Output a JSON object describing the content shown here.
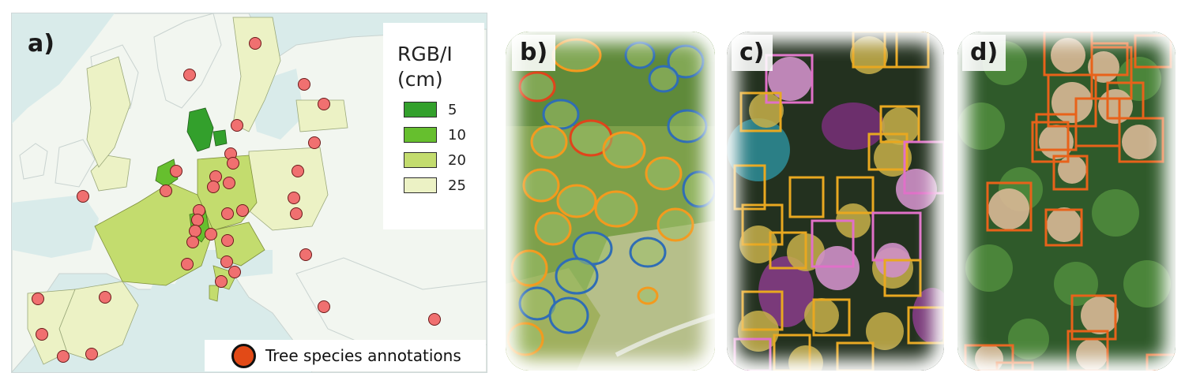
{
  "panels": {
    "a": "a)",
    "b": "b)",
    "c": "c)",
    "d": "d)"
  },
  "legend": {
    "title_line1": "RGB/I",
    "title_line2": "(cm)",
    "items": [
      {
        "value": "5",
        "color": "#33a02c"
      },
      {
        "value": "10",
        "color": "#66bf2e"
      },
      {
        "value": "20",
        "color": "#c3dc6e"
      },
      {
        "value": "25",
        "color": "#ecf2c5"
      }
    ]
  },
  "annotation_legend": {
    "label": "Tree species annotations",
    "marker_color": "#e24a17"
  },
  "colors": {
    "sea": "#d9ebea",
    "non_covered_land": "#f2f6f0",
    "site_marker": "#f07070",
    "polygon_orange": "#f39a1e",
    "polygon_blue": "#2f6db5",
    "polygon_red": "#e0441b",
    "box_yellow": "#e8a820",
    "box_pink": "#e070c8",
    "box_orange": "#e8621a"
  }
}
